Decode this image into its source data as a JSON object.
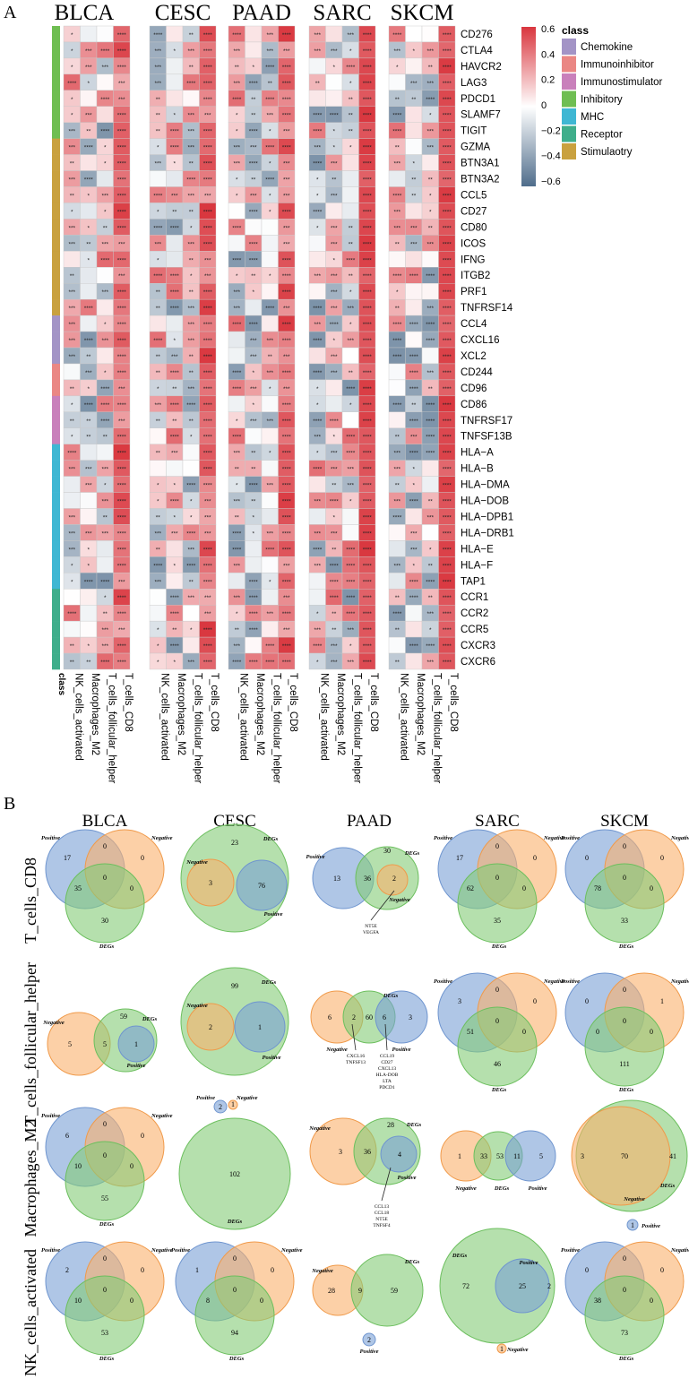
{
  "panelA": {
    "label": "A",
    "genes": [
      "CD276",
      "CTLA4",
      "HAVCR2",
      "LAG3",
      "PDCD1",
      "SLAMF7",
      "TIGIT",
      "GZMA",
      "BTN3A1",
      "BTN3A2",
      "CCL5",
      "CD27",
      "CD80",
      "ICOS",
      "IFNG",
      "ITGB2",
      "PRF1",
      "TNFRSF14",
      "CCL4",
      "CXCL16",
      "XCL2",
      "CD244",
      "CD96",
      "CD86",
      "TNFRSF17",
      "TNFSF13B",
      "HLA−A",
      "HLA−B",
      "HLA−DMA",
      "HLA−DOB",
      "HLA−DPB1",
      "HLA−DRB1",
      "HLA−E",
      "HLA−F",
      "TAP1",
      "CCR1",
      "CCR2",
      "CCR5",
      "CXCR3",
      "CXCR6"
    ],
    "gene_class": [
      "Inhibitory",
      "Inhibitory",
      "Inhibitory",
      "Inhibitory",
      "Inhibitory",
      "Inhibitory",
      "Inhibitory",
      "Stimulaotry",
      "Stimulaotry",
      "Stimulaotry",
      "Stimulaotry",
      "Stimulaotry",
      "Stimulaotry",
      "Stimulaotry",
      "Stimulaotry",
      "Stimulaotry",
      "Stimulaotry",
      "Stimulaotry",
      "Chemokine",
      "Chemokine",
      "Chemokine",
      "Immunoinhibitor",
      "Immunoinhibitor",
      "Immunostimulator",
      "Immunostimulator",
      "Immunostimulator",
      "MHC",
      "MHC",
      "MHC",
      "MHC",
      "MHC",
      "MHC",
      "MHC",
      "MHC",
      "MHC",
      "Receptor",
      "Receptor",
      "Receptor",
      "Receptor",
      "Receptor"
    ],
    "cancers": [
      "BLCA",
      "CESC",
      "PAAD",
      "SARC",
      "SKCM"
    ],
    "cell_types": [
      "NK_cells_activated",
      "Macrophages_M2",
      "T_cells_follicular_helper",
      "T_cells_CD8"
    ],
    "class_axis_label": "class",
    "colorbar": {
      "ticks": [
        "0.6",
        "0.4",
        "0.2",
        "0",
        "−0.2",
        "−0.4",
        "−0.6"
      ],
      "min": -0.6,
      "max": 0.6
    },
    "legend": {
      "title": "class",
      "items": [
        {
          "label": "Chemokine",
          "color": "#a394c6"
        },
        {
          "label": "Immunoinhibitor",
          "color": "#ea8784"
        },
        {
          "label": "Immunostimulator",
          "color": "#c980bb"
        },
        {
          "label": "Inhibitory",
          "color": "#6fbe52"
        },
        {
          "label": "MHC",
          "color": "#3fb7d3"
        },
        {
          "label": "Receptor",
          "color": "#3fae8b"
        },
        {
          "label": "Stimulaotry",
          "color": "#c9a13f"
        }
      ]
    }
  },
  "panelB": {
    "label": "B",
    "cancers": [
      "BLCA",
      "CESC",
      "PAAD",
      "SARC",
      "SKCM"
    ],
    "rows": [
      "T_cells_CD8",
      "T_cells_follicular_helper",
      "Macrophages_M2",
      "NK_cells_activated"
    ],
    "set_labels": {
      "positive": "Positive",
      "negative": "Negative",
      "degs": "DEGs"
    },
    "counts": {
      "BLCA": [
        {
          "pos_only": "17",
          "neg_only": "0",
          "pn": "0",
          "center": "0",
          "pd": "35",
          "nd": "0",
          "degs_only": "30"
        },
        {
          "neg": "5",
          "nd": "5",
          "degs": "59",
          "pd": "1"
        },
        {
          "pos_only": "6",
          "neg_only": "0",
          "pn": "0",
          "center": "0",
          "pd": "10",
          "nd": "0",
          "degs_only": "55"
        },
        {
          "pos_only": "2",
          "neg_only": "0",
          "pn": "0",
          "center": "0",
          "pd": "10",
          "nd": "0",
          "degs_only": "53"
        }
      ],
      "CESC": [
        {
          "degs": "23",
          "neg": "3",
          "pos": "76"
        },
        {
          "degs": "99",
          "neg": "2",
          "pos": "1"
        },
        {
          "pos": "2",
          "neg": "1",
          "degs": "102"
        },
        {
          "pos_only": "1",
          "neg_only": "0",
          "pn": "0",
          "center": "0",
          "pd": "8",
          "nd": "0",
          "degs_only": "94"
        }
      ],
      "PAAD": [
        {
          "pos": "13",
          "pd": "36",
          "degs": "30",
          "nd": "2",
          "genes": [
            "NT5E",
            "VEGFA"
          ]
        },
        {
          "neg": "6",
          "nd": "2",
          "degs": "60",
          "pd": "6",
          "pos": "3",
          "genes_left": [
            "CXCL16",
            "TNFSF13"
          ],
          "genes_right": [
            "CCL19",
            "CD27",
            "CXCL13",
            "HLA-DOB",
            "LTA",
            "PDCD1"
          ]
        },
        {
          "neg": "3",
          "nd": "36",
          "degs": "28",
          "pd": "4",
          "genes": [
            "CCL13",
            "CCL18",
            "NT5E",
            "TNFSF4"
          ]
        },
        {
          "neg": "28",
          "nd": "9",
          "degs": "59",
          "pos": "2"
        }
      ],
      "SARC": [
        {
          "pos_only": "17",
          "neg_only": "0",
          "pn": "0",
          "center": "0",
          "pd": "62",
          "nd": "0",
          "degs_only": "35"
        },
        {
          "pos_only": "3",
          "neg_only": "0",
          "pn": "0",
          "center": "0",
          "pd": "51",
          "nd": "0",
          "degs_only": "46"
        },
        {
          "neg": "1",
          "nd": "33",
          "degs": "53",
          "pd": "11",
          "pos": "5"
        },
        {
          "degs": "72",
          "pd": "25",
          "pos": "2",
          "neg": "1"
        }
      ],
      "SKCM": [
        {
          "pos_only": "0",
          "neg_only": "0",
          "pn": "0",
          "center": "0",
          "pd": "78",
          "nd": "0",
          "degs_only": "33"
        },
        {
          "pos_only": "0",
          "neg_only": "1",
          "pn": "0",
          "center": "0",
          "pd": "0",
          "nd": "0",
          "degs_only": "111"
        },
        {
          "neg_only": "3",
          "nd": "70",
          "degs": "41",
          "pos": "1"
        },
        {
          "pos_only": "0",
          "neg_only": "0",
          "pn": "0",
          "center": "0",
          "pd": "38",
          "nd": "0",
          "degs_only": "73"
        }
      ]
    }
  }
}
